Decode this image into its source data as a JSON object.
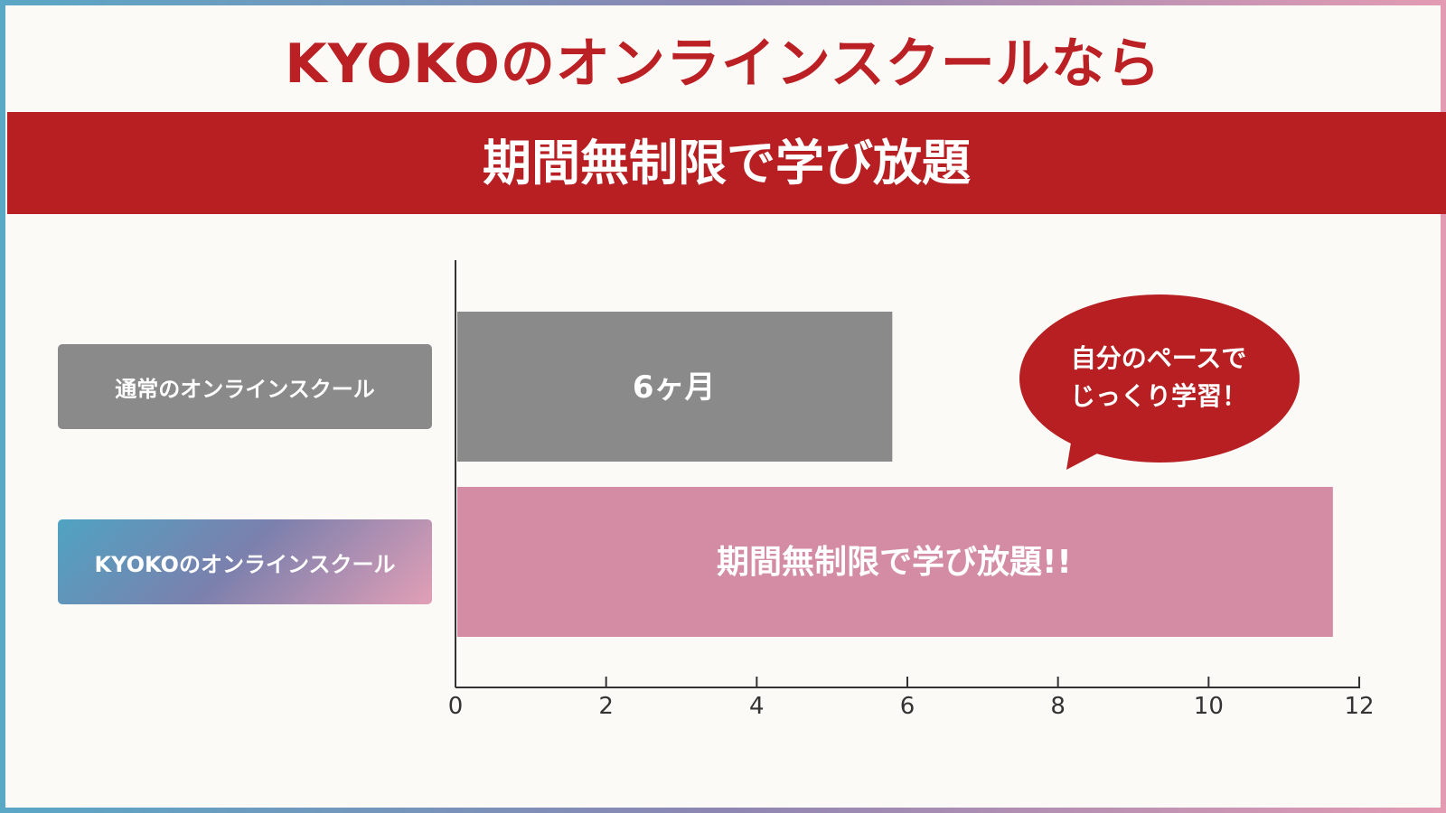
{
  "title": "KYOKOのオンラインスクールなら",
  "banner": "期間無制限で学び放題",
  "bubble": {
    "line1": "自分のペースで",
    "line2": "じっくり学習！"
  },
  "colors": {
    "accent_red": "#b71f22",
    "title_red": "#bb2024",
    "bar_gray": "#8a8a8a",
    "bar_pink": "#d38ca3"
  },
  "chart_data": {
    "type": "bar",
    "orientation": "horizontal",
    "categories": [
      "通常のオンラインスクール",
      "KYOKOのオンラインスクール"
    ],
    "values": [
      5.8,
      11.65
    ],
    "bar_labels": [
      "6ヶ月",
      "期間無制限で学び放題!!"
    ],
    "bar_colors": [
      "#8a8a8a",
      "#d38ca3"
    ],
    "xlim": [
      0,
      12
    ],
    "xticks": [
      "0",
      "2",
      "4",
      "6",
      "8",
      "10",
      "12"
    ],
    "grid": false,
    "legend": "none"
  }
}
